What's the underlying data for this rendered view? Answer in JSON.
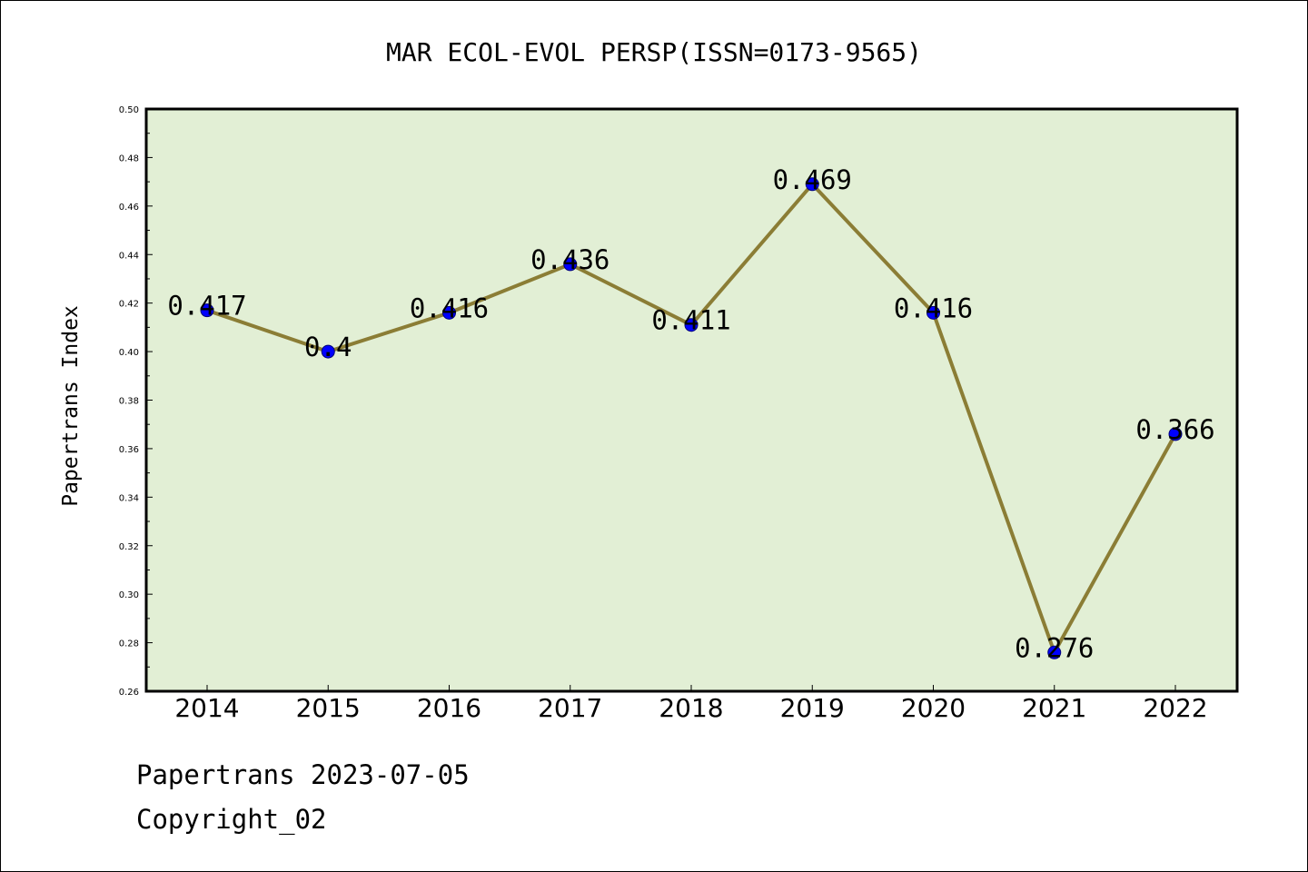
{
  "chart_data": {
    "type": "line",
    "title": "MAR ECOL-EVOL PERSP(ISSN=0173-9565)",
    "xlabel": "",
    "ylabel": "Papertrans Index",
    "categories": [
      "2014",
      "2015",
      "2016",
      "2017",
      "2018",
      "2019",
      "2020",
      "2021",
      "2022"
    ],
    "values": [
      0.417,
      0.4,
      0.416,
      0.436,
      0.411,
      0.469,
      0.416,
      0.276,
      0.366
    ],
    "data_labels": [
      "0.417",
      "0.4",
      "0.416",
      "0.436",
      "0.411",
      "0.469",
      "0.416",
      "0.276",
      "0.366"
    ],
    "ylim": [
      0.26,
      0.5
    ],
    "yticks": [
      "0.26",
      "0.28",
      "0.30",
      "0.32",
      "0.34",
      "0.36",
      "0.38",
      "0.40",
      "0.42",
      "0.44",
      "0.46",
      "0.48",
      "0.50"
    ],
    "grid": false,
    "legend": "none",
    "colors": {
      "plot_background": "#e2efd5",
      "line": "#8b7d35",
      "marker": "#0000ff"
    }
  },
  "footer": {
    "source_line": "Papertrans 2023-07-05",
    "copyright_line": "Copyright_02"
  }
}
